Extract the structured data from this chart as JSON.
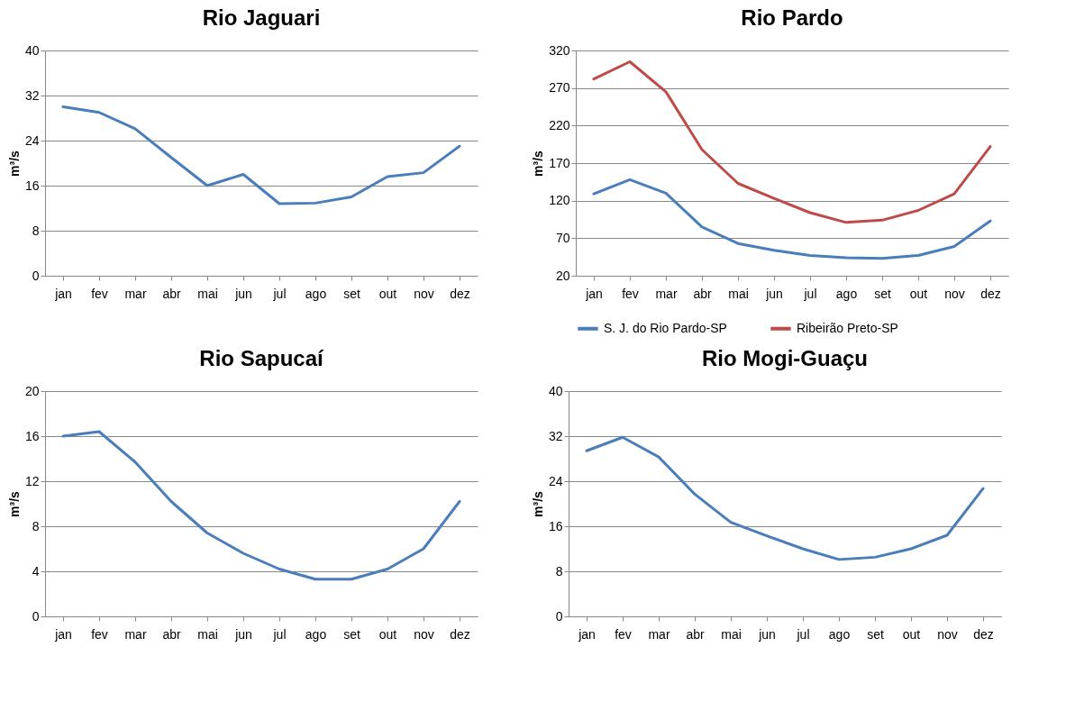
{
  "chart_data": [
    {
      "type": "line",
      "title": "Rio Jaguari",
      "ylabel": "m³/s",
      "categories": [
        "jan",
        "fev",
        "mar",
        "abr",
        "mai",
        "jun",
        "jul",
        "ago",
        "set",
        "out",
        "nov",
        "dez"
      ],
      "ylim": [
        0,
        40
      ],
      "yticks": [
        0,
        8,
        16,
        24,
        32,
        40
      ],
      "grid": "y",
      "series": [
        {
          "color": "#4a7ebb",
          "values": [
            30.0,
            29.0,
            26.1,
            21.0,
            16.0,
            18.0,
            12.8,
            12.9,
            14.0,
            17.6,
            18.3,
            23.0
          ]
        }
      ]
    },
    {
      "type": "line",
      "title": "Rio Pardo",
      "ylabel": "m³/s",
      "categories": [
        "jan",
        "fev",
        "mar",
        "abr",
        "mai",
        "jun",
        "jul",
        "ago",
        "set",
        "out",
        "nov",
        "dez"
      ],
      "ylim": [
        20,
        320
      ],
      "yticks": [
        20,
        70,
        120,
        170,
        220,
        270,
        320
      ],
      "grid": "y",
      "legend": "bottom",
      "series": [
        {
          "name": "S. J. do Rio Pardo-SP",
          "color": "#4a7ebb",
          "values": [
            129,
            148,
            130,
            85,
            63,
            54,
            47,
            44,
            43,
            47,
            59,
            93
          ]
        },
        {
          "name": "Ribeirão Preto-SP",
          "color": "#be4b48",
          "values": [
            282,
            305,
            265,
            188,
            143,
            123,
            104,
            91,
            94,
            107,
            129,
            192
          ]
        }
      ]
    },
    {
      "type": "line",
      "title": "Rio Sapucaí",
      "ylabel": "m³/s",
      "categories": [
        "jan",
        "fev",
        "mar",
        "abr",
        "mai",
        "jun",
        "jul",
        "ago",
        "set",
        "out",
        "nov",
        "dez"
      ],
      "ylim": [
        0,
        20
      ],
      "yticks": [
        0,
        4,
        8,
        12,
        16,
        20
      ],
      "grid": "y",
      "series": [
        {
          "color": "#4a7ebb",
          "values": [
            16.0,
            16.4,
            13.7,
            10.2,
            7.4,
            5.6,
            4.2,
            3.3,
            3.3,
            4.2,
            6.0,
            10.2
          ]
        }
      ]
    },
    {
      "type": "line",
      "title": "Rio Mogi-Guaçu",
      "ylabel": "m³/s",
      "categories": [
        "jan",
        "fev",
        "mar",
        "abr",
        "mai",
        "jun",
        "jul",
        "ago",
        "set",
        "out",
        "nov",
        "dez"
      ],
      "ylim": [
        0,
        40
      ],
      "yticks": [
        0,
        8,
        16,
        24,
        32,
        40
      ],
      "grid": "y",
      "series": [
        {
          "color": "#4a7ebb",
          "values": [
            29.4,
            31.8,
            28.3,
            21.7,
            16.7,
            14.3,
            12.0,
            10.1,
            10.5,
            12.0,
            14.4,
            22.7
          ]
        }
      ]
    }
  ]
}
